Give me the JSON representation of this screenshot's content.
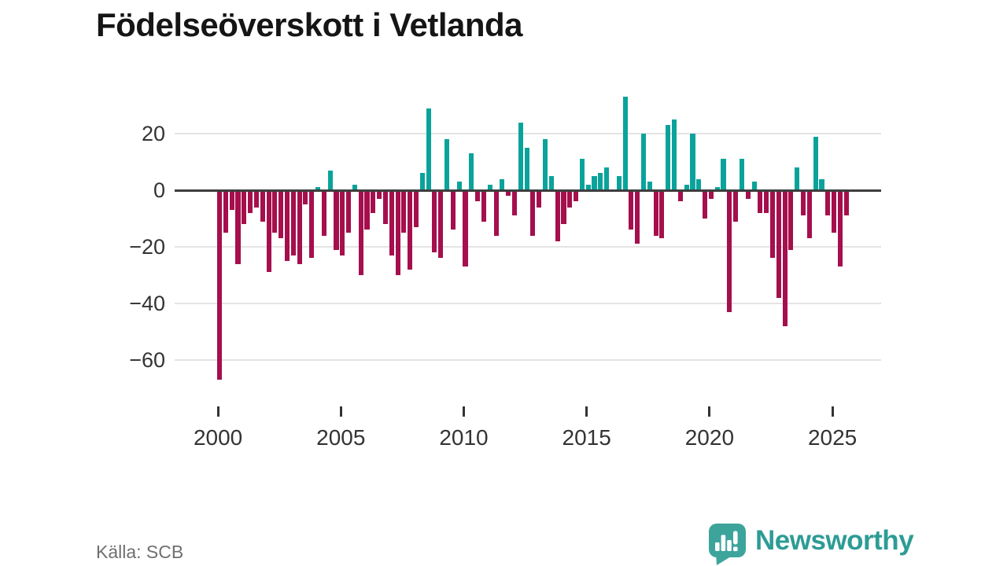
{
  "header": {
    "title": "Födelseöverskott i Vetlanda"
  },
  "footer": {
    "source": "Källa: SCB",
    "brand": "Newsworthy"
  },
  "colors": {
    "positive": "#0aa39b",
    "negative": "#a50f4d",
    "gridline": "#e4e4e4",
    "zero_axis": "#3d3d3d",
    "axis_text": "#333333",
    "title_text": "#151515",
    "source_text": "#6f6f6f",
    "brand_teal": "#3da49c"
  },
  "chart_data": {
    "type": "bar",
    "title": "Födelseöverskott i Vetlanda",
    "xlabel": "",
    "ylabel": "",
    "frequency": "quarterly",
    "start": "2000Q1",
    "end": "2025Q3",
    "y_ticks": [
      20,
      0,
      -20,
      -40,
      -60
    ],
    "ylim": [
      -74,
      36
    ],
    "x_tick_labels": [
      "2000",
      "2005",
      "2010",
      "2015",
      "2020",
      "2025"
    ],
    "x_tick_quarter_indices": [
      0,
      20,
      40,
      60,
      80,
      100
    ],
    "grid": "horizontal-only",
    "legend": "none",
    "series_by_year": [
      {
        "year": 2000,
        "q": [
          -67,
          -15,
          -7,
          -26
        ]
      },
      {
        "year": 2001,
        "q": [
          -12,
          -8,
          -6,
          -11
        ]
      },
      {
        "year": 2002,
        "q": [
          -29,
          -15,
          -17,
          -25
        ]
      },
      {
        "year": 2003,
        "q": [
          -23,
          -26,
          -5,
          -24
        ]
      },
      {
        "year": 2004,
        "q": [
          1,
          -16,
          7,
          -21
        ]
      },
      {
        "year": 2005,
        "q": [
          -23,
          -15,
          2,
          -30
        ]
      },
      {
        "year": 2006,
        "q": [
          -14,
          -8,
          -3,
          -12
        ]
      },
      {
        "year": 2007,
        "q": [
          -23,
          -30,
          -15,
          -28
        ]
      },
      {
        "year": 2008,
        "q": [
          -13,
          6,
          29,
          -22
        ]
      },
      {
        "year": 2009,
        "q": [
          -24,
          18,
          -14,
          3
        ]
      },
      {
        "year": 2010,
        "q": [
          -27,
          13,
          -4,
          -11
        ]
      },
      {
        "year": 2011,
        "q": [
          2,
          -16,
          4,
          -2
        ]
      },
      {
        "year": 2012,
        "q": [
          -9,
          24,
          15,
          -16
        ]
      },
      {
        "year": 2013,
        "q": [
          -6,
          18,
          5,
          -18
        ]
      },
      {
        "year": 2014,
        "q": [
          -12,
          -6,
          -4,
          11
        ]
      },
      {
        "year": 2015,
        "q": [
          2,
          5,
          6,
          8
        ]
      },
      {
        "year": 2016,
        "q": [
          0,
          5,
          33,
          -14
        ]
      },
      {
        "year": 2017,
        "q": [
          -19,
          20,
          3,
          -16
        ]
      },
      {
        "year": 2018,
        "q": [
          -17,
          23,
          25,
          -4
        ]
      },
      {
        "year": 2019,
        "q": [
          2,
          20,
          4,
          -10
        ]
      },
      {
        "year": 2020,
        "q": [
          -3,
          1,
          11,
          -43
        ]
      },
      {
        "year": 2021,
        "q": [
          -11,
          11,
          -3,
          3
        ]
      },
      {
        "year": 2022,
        "q": [
          -8,
          -8,
          -24,
          -38
        ]
      },
      {
        "year": 2023,
        "q": [
          -48,
          -21,
          8,
          -9
        ]
      },
      {
        "year": 2024,
        "q": [
          -17,
          19,
          4,
          -9
        ]
      },
      {
        "year": 2025,
        "q": [
          -15,
          -27,
          -9
        ]
      }
    ]
  }
}
